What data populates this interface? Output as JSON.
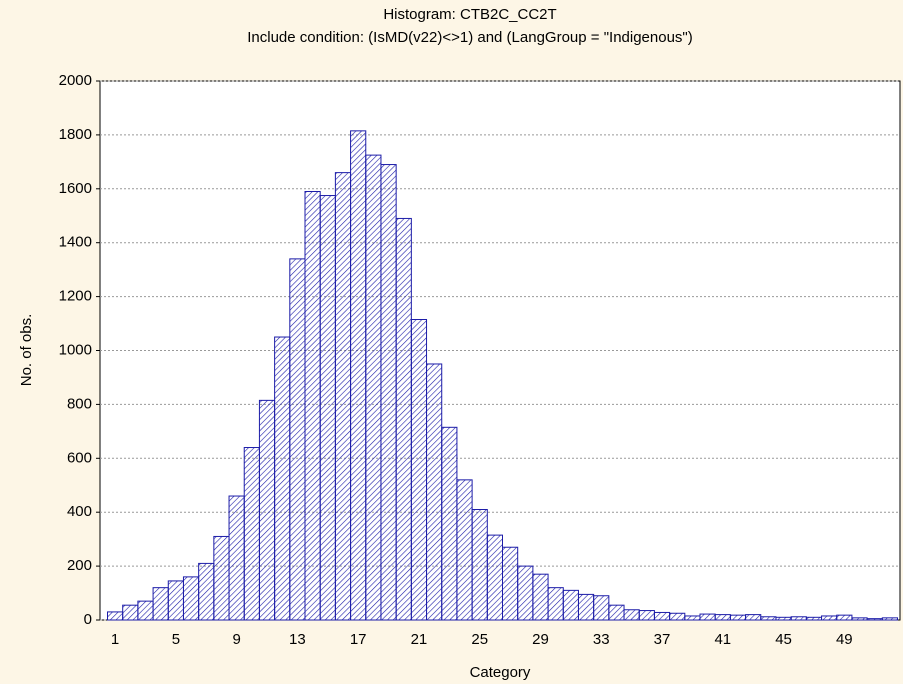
{
  "chart_data": {
    "type": "bar",
    "title": "Histogram: CTB2C_CC2T",
    "subtitle": "Include condition: (IsMD(v22)<>1) and (LangGroup = \"Indigenous\")",
    "x_label": "Category",
    "y_label": "No. of obs.",
    "categories": [
      "1",
      null,
      null,
      null,
      "5",
      null,
      null,
      null,
      "9",
      null,
      null,
      null,
      "13",
      null,
      null,
      null,
      "17",
      null,
      null,
      null,
      "21",
      null,
      null,
      null,
      "25",
      null,
      null,
      null,
      "29",
      null,
      null,
      null,
      "33",
      null,
      null,
      null,
      "37",
      null,
      null,
      null,
      "41",
      null,
      null,
      null,
      "45",
      null,
      null,
      null,
      "49",
      null,
      null,
      null
    ],
    "values": [
      30,
      55,
      70,
      120,
      145,
      160,
      210,
      310,
      460,
      640,
      815,
      1050,
      1340,
      1590,
      1575,
      1660,
      1815,
      1725,
      1690,
      1490,
      1115,
      950,
      715,
      520,
      410,
      315,
      270,
      200,
      170,
      120,
      110,
      95,
      90,
      55,
      38,
      35,
      28,
      25,
      15,
      22,
      20,
      18,
      20,
      12,
      10,
      12,
      10,
      15,
      18,
      8,
      5,
      8
    ],
    "color": "#1c1ca8",
    "ylim": [
      0,
      2000
    ],
    "yticks": [
      0,
      200,
      400,
      600,
      800,
      1000,
      1200,
      1400,
      1600,
      1800,
      2000
    ],
    "grid": true
  }
}
